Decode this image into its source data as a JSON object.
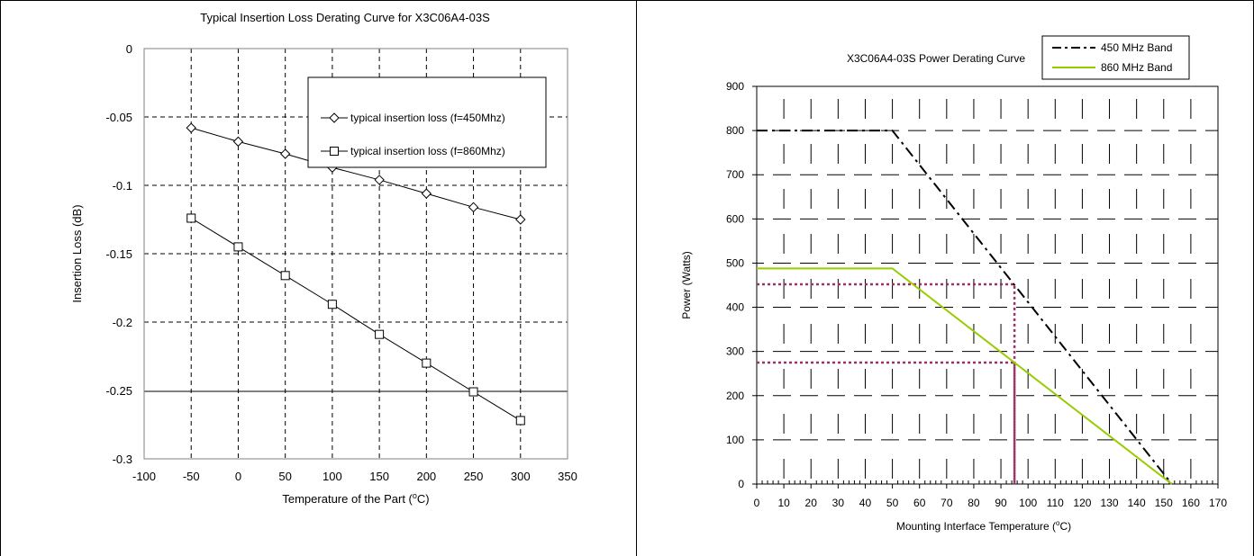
{
  "chart_data": [
    {
      "type": "line",
      "title": "Typical Insertion Loss Derating Curve for X3C06A4-03S",
      "xlabel": "Temperature of the Part (",
      "xlabel_sup": "o",
      "xlabel_end": "C)",
      "ylabel": "Insertion Loss (dB)",
      "xlim": [
        -100,
        350
      ],
      "ylim": [
        -0.3,
        0
      ],
      "xticks": [
        "-100",
        "-50",
        "0",
        "50",
        "100",
        "150",
        "200",
        "250",
        "300",
        "350"
      ],
      "yticks": [
        "0",
        "-0.05",
        "-0.1",
        "-0.15",
        "-0.2",
        "-0.25",
        "-0.3"
      ],
      "grid": "dashed",
      "reference_line_y": -0.25,
      "legend_position": "top-right",
      "series": [
        {
          "name": "typical insertion loss (f=450Mhz)",
          "marker": "diamond",
          "x": [
            -50,
            0,
            50,
            100,
            150,
            200,
            250,
            300
          ],
          "y": [
            -0.058,
            -0.068,
            -0.077,
            -0.087,
            -0.096,
            -0.106,
            -0.116,
            -0.125
          ]
        },
        {
          "name": "typical insertion loss (f=860Mhz)",
          "marker": "square",
          "x": [
            -50,
            0,
            50,
            100,
            150,
            200,
            250,
            300
          ],
          "y": [
            -0.124,
            -0.145,
            -0.166,
            -0.187,
            -0.209,
            -0.23,
            -0.251,
            -0.272
          ]
        }
      ]
    },
    {
      "type": "line",
      "title": "X3C06A4-03S Power Derating Curve",
      "xlabel": "Mounting Interface Temperature (",
      "xlabel_sup": "o",
      "xlabel_end": "C)",
      "ylabel": "Power (Watts)",
      "xlim": [
        0,
        170
      ],
      "ylim": [
        0,
        900
      ],
      "xticks": [
        "0",
        "10",
        "20",
        "30",
        "40",
        "50",
        "60",
        "70",
        "80",
        "90",
        "100",
        "110",
        "120",
        "130",
        "140",
        "150",
        "160",
        "170"
      ],
      "yticks": [
        "0",
        "100",
        "200",
        "300",
        "400",
        "500",
        "600",
        "700",
        "800",
        "900"
      ],
      "grid": "crosshair",
      "legend_position": "top-right",
      "series": [
        {
          "name": "450 MHz Band",
          "color": "#000000",
          "style": "dash-dot",
          "x": [
            0,
            50,
            153
          ],
          "y": [
            800,
            800,
            0
          ]
        },
        {
          "name": "860 MHz Band",
          "color": "#99cc00",
          "style": "solid",
          "x": [
            0,
            50,
            153
          ],
          "y": [
            488,
            488,
            0
          ]
        }
      ],
      "guides": [
        {
          "color": "#993366",
          "x": 95,
          "y": 452
        },
        {
          "color": "#993366",
          "x": 95,
          "y": 275
        }
      ]
    }
  ]
}
